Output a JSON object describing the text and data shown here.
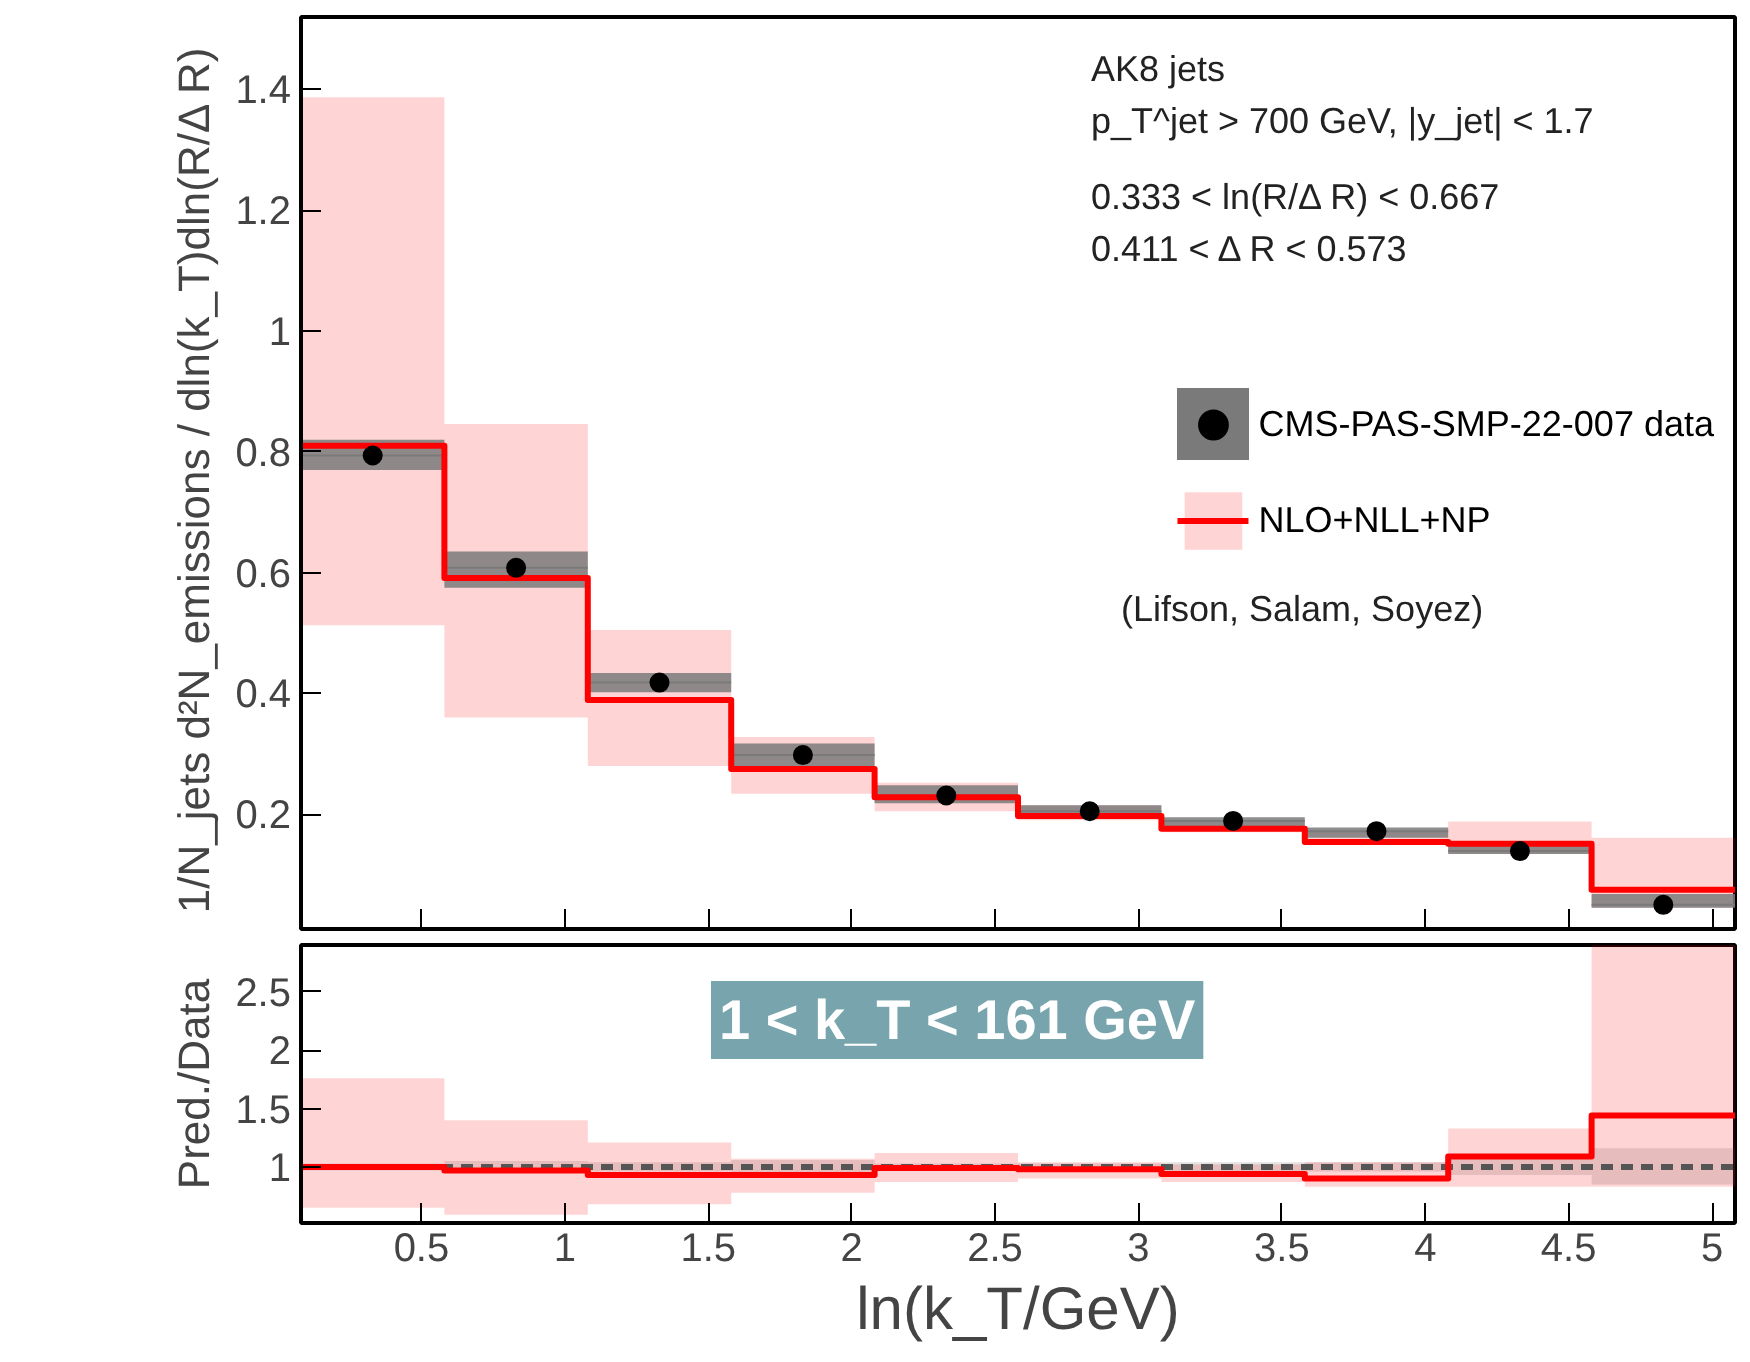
{
  "chart_data": [
    {
      "type": "step",
      "ylabel": "1/N_jets  d²N_emissions / dln(k_T)dln(R/Δ R)",
      "xlim": [
        0.08,
        5.08
      ],
      "ylim": [
        0.01,
        1.52
      ],
      "xticks": [
        0.5,
        1,
        1.5,
        2,
        2.5,
        3,
        3.5,
        4,
        4.5,
        5
      ],
      "yticks": [
        0.2,
        0.4,
        0.6,
        0.8,
        1,
        1.2,
        1.4
      ],
      "tick_labels": "y",
      "grid": false,
      "legend": "right",
      "annotations": [
        "AK8 jets",
        "p_T^jet > 700 GeV, |y_jet| < 1.7",
        "0.333 < ln(R/Δ R) < 0.667",
        "0.411 < Δ R < 0.573",
        "(Lifson, Salam, Soyez)"
      ],
      "series": [
        {
          "name": "NLO+NLL+NP",
          "color": "#ff0000",
          "x": [
            0.08,
            0.58,
            1.08,
            1.58,
            2.08,
            2.58,
            3.08,
            3.58,
            4.08,
            4.58,
            5.08
          ],
          "values": [
            0.81,
            0.591,
            0.389,
            0.275,
            0.228,
            0.197,
            0.176,
            0.154,
            0.151,
            0.075,
            0.075
          ],
          "lower": [
            0.513,
            0.36,
            0.28,
            0.234,
            0.205,
            0.19,
            0.17,
            0.15,
            0.135,
            0.045,
            0.045
          ],
          "upper": [
            1.387,
            0.846,
            0.505,
            0.328,
            0.252,
            0.215,
            0.19,
            0.17,
            0.188,
            0.161,
            0.161
          ]
        },
        {
          "name": "CMS-PAS-SMP-22-007 data",
          "type": "scatter",
          "color": "#000000",
          "x": [
            0.33,
            0.83,
            1.33,
            1.83,
            2.33,
            2.83,
            3.33,
            3.83,
            4.33,
            4.83
          ],
          "xerrors": [
            0.25,
            0.25,
            0.25,
            0.25,
            0.25,
            0.25,
            0.25,
            0.25,
            0.25,
            0.25
          ],
          "values": [
            0.794,
            0.608,
            0.418,
            0.298,
            0.231,
            0.205,
            0.189,
            0.172,
            0.139,
            0.05
          ],
          "errors": [
            [
              0.77,
              0.82
            ],
            [
              0.575,
              0.635
            ],
            [
              0.402,
              0.434
            ],
            [
              0.28,
              0.317
            ],
            [
              0.218,
              0.248
            ],
            [
              0.195,
              0.215
            ],
            [
              0.178,
              0.195
            ],
            [
              0.161,
              0.178
            ],
            [
              0.134,
              0.155
            ],
            [
              0.045,
              0.068
            ]
          ]
        }
      ]
    },
    {
      "type": "step",
      "xlabel": "ln(k_T/GeV)",
      "ylabel": "Pred./Data",
      "xlim": [
        0.08,
        5.08
      ],
      "ylim": [
        0.52,
        2.9
      ],
      "xticks": [
        0.5,
        1,
        1.5,
        2,
        2.5,
        3,
        3.5,
        4,
        4.5,
        5
      ],
      "yticks": [
        1,
        1.5,
        2,
        2.5
      ],
      "grid": false,
      "annotations": [
        "1 < k_T < 161 GeV"
      ],
      "series": [
        {
          "color": "#555555",
          "line_style": "dashed",
          "x": [
            0.08,
            0.58,
            1.08,
            1.58,
            2.08,
            2.58,
            3.08,
            3.58,
            4.08,
            4.58,
            5.08
          ],
          "values": [
            1,
            1,
            1,
            1,
            1,
            1,
            1,
            1,
            1,
            1,
            1
          ],
          "lower": [
            0.97,
            0.95,
            0.96,
            0.94,
            0.97,
            0.97,
            0.96,
            0.96,
            0.93,
            0.85,
            0.85
          ],
          "upper": [
            1.03,
            1.05,
            1.04,
            1.06,
            1.03,
            1.03,
            1.04,
            1.04,
            1.07,
            1.16,
            1.16
          ]
        },
        {
          "color": "#ff0000",
          "line_style": "solid",
          "x": [
            0.08,
            0.58,
            1.08,
            1.58,
            2.08,
            2.58,
            3.08,
            3.58,
            4.08,
            4.58,
            5.08
          ],
          "values": [
            1.0,
            0.97,
            0.93,
            0.93,
            0.99,
            0.98,
            0.94,
            0.9,
            1.09,
            1.44,
            1.44
          ],
          "lower": [
            0.65,
            0.59,
            0.68,
            0.78,
            0.87,
            0.9,
            0.87,
            0.83,
            0.83,
            0.83,
            0.83
          ],
          "upper": [
            1.76,
            1.4,
            1.21,
            1.07,
            1.12,
            1.04,
            1.02,
            1.04,
            1.33,
            2.9,
            2.9
          ]
        }
      ]
    }
  ]
}
